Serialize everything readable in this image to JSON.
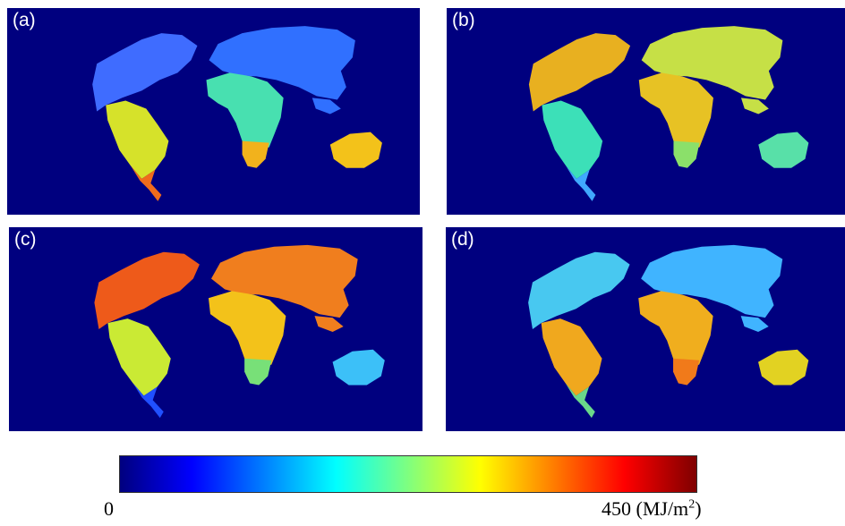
{
  "panels": [
    {
      "id": "a",
      "label": "(a)"
    },
    {
      "id": "b",
      "label": "(b)"
    },
    {
      "id": "c",
      "label": "(c)"
    },
    {
      "id": "d",
      "label": "(d)"
    }
  ],
  "region_colors": {
    "a": {
      "north_america": "#3f6cff",
      "south_america": "#d6e22a",
      "europe_asia": "#3070ff",
      "africa": "#48e0b0",
      "southern_africa": "#f2b21c",
      "australia": "#f3c21a",
      "patagonia": "#f06b1c"
    },
    "b": {
      "north_america": "#e8b020",
      "south_america": "#3ce0b8",
      "europe_asia": "#c6e046",
      "africa": "#e7c224",
      "southern_africa": "#8be06a",
      "australia": "#58e0a8",
      "patagonia": "#40a8ff"
    },
    "c": {
      "north_america": "#ee5a1a",
      "south_america": "#caea34",
      "europe_asia": "#f07e1e",
      "africa": "#f3c21a",
      "southern_africa": "#78e078",
      "australia": "#3cc0f8",
      "patagonia": "#2050ff"
    },
    "d": {
      "north_america": "#48c8f0",
      "south_america": "#f0a81e",
      "europe_asia": "#40b4ff",
      "africa": "#f0ae1e",
      "southern_africa": "#f17a1a",
      "australia": "#e2d222",
      "patagonia": "#6ad88a"
    }
  },
  "colorbar": {
    "min_label": "0",
    "max_value": "450",
    "unit_prefix": "(MJ/m",
    "unit_sup": "2",
    "unit_suffix": ")",
    "colormap": [
      "#00007f",
      "#0000ff",
      "#007fff",
      "#00ffff",
      "#7fff7f",
      "#ffff00",
      "#ff7f00",
      "#ff0000",
      "#7f0000"
    ]
  }
}
